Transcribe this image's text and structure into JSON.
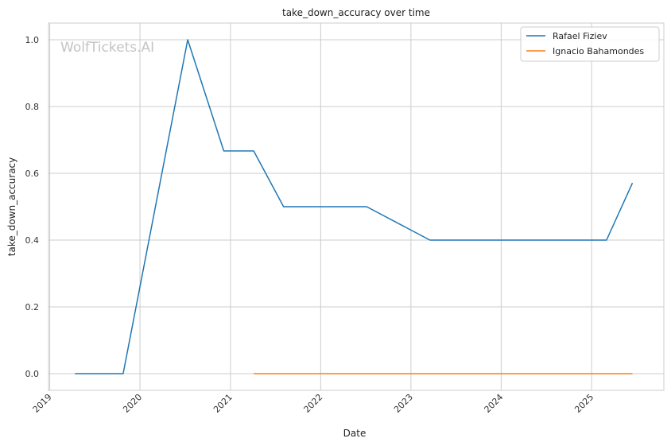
{
  "watermark": "WolfTickets.AI",
  "chart_data": {
    "type": "line",
    "title": "take_down_accuracy over time",
    "xlabel": "Date",
    "ylabel": "take_down_accuracy",
    "x_ticks": [
      "2019",
      "2020",
      "2021",
      "2022",
      "2023",
      "2024",
      "2025"
    ],
    "y_ticks": [
      "0.0",
      "0.2",
      "0.4",
      "0.6",
      "0.8",
      "1.0"
    ],
    "xlim": [
      "2018-12-27",
      "2025-10-20"
    ],
    "ylim": [
      -0.05,
      1.05
    ],
    "grid": true,
    "legend_position": "top-right",
    "series": [
      {
        "name": "Rafael Fiziev",
        "color": "#1f77b4",
        "points": [
          {
            "x": "2019-04-13",
            "y": 0.0
          },
          {
            "x": "2019-10-25",
            "y": 0.0
          },
          {
            "x": "2020-07-12",
            "y": 1.0
          },
          {
            "x": "2020-12-05",
            "y": 0.667
          },
          {
            "x": "2021-04-05",
            "y": 0.667
          },
          {
            "x": "2021-08-04",
            "y": 0.5
          },
          {
            "x": "2022-07-06",
            "y": 0.5
          },
          {
            "x": "2023-03-19",
            "y": 0.4
          },
          {
            "x": "2025-03-02",
            "y": 0.4
          },
          {
            "x": "2025-06-15",
            "y": 0.571
          }
        ]
      },
      {
        "name": "Ignacio Bahamondes",
        "color": "#ff7f0e",
        "points": [
          {
            "x": "2021-04-05",
            "y": 0.0
          },
          {
            "x": "2025-06-15",
            "y": 0.0
          }
        ]
      }
    ]
  }
}
